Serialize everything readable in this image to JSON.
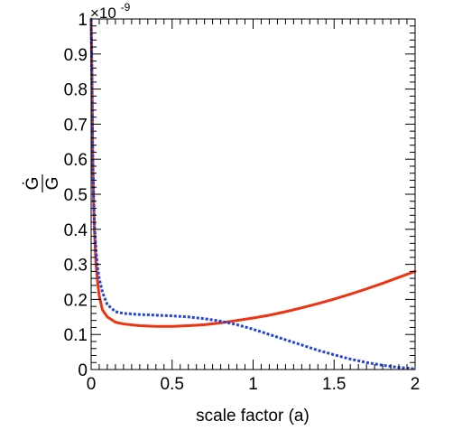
{
  "chart_data": {
    "type": "line",
    "xlabel": "scale factor (a)",
    "ylabel": "Ġ/G",
    "ylabel_numerator": "Ġ",
    "ylabel_denominator": "G",
    "y_multiplier": "×10",
    "y_multiplier_exponent": "-9",
    "xlim": [
      0,
      2
    ],
    "ylim": [
      0,
      1
    ],
    "x_ticks": [
      "0",
      "0.5",
      "1",
      "1.5",
      "2"
    ],
    "y_ticks": [
      "0",
      "0.1",
      "0.2",
      "0.3",
      "0.4",
      "0.5",
      "0.6",
      "0.7",
      "0.8",
      "0.9",
      "1"
    ],
    "grid": false,
    "series": [
      {
        "color": "#ee3311",
        "style": "solid",
        "x": [
          0.0,
          0.005,
          0.01,
          0.015,
          0.02,
          0.03,
          0.04,
          0.05,
          0.07,
          0.1,
          0.15,
          0.2,
          0.3,
          0.4,
          0.5,
          0.6,
          0.7,
          0.8,
          0.9,
          1.0,
          1.1,
          1.2,
          1.3,
          1.4,
          1.5,
          1.6,
          1.7,
          1.8,
          1.9,
          2.0
        ],
        "y": [
          1.0,
          0.85,
          0.6,
          0.48,
          0.4,
          0.3,
          0.25,
          0.21,
          0.17,
          0.15,
          0.135,
          0.13,
          0.125,
          0.123,
          0.123,
          0.125,
          0.128,
          0.133,
          0.14,
          0.147,
          0.155,
          0.165,
          0.176,
          0.188,
          0.201,
          0.215,
          0.23,
          0.246,
          0.263,
          0.28
        ]
      },
      {
        "color": "#2244dd",
        "style": "dotted",
        "x": [
          0.0,
          0.005,
          0.01,
          0.015,
          0.02,
          0.03,
          0.04,
          0.05,
          0.07,
          0.1,
          0.15,
          0.2,
          0.3,
          0.4,
          0.5,
          0.6,
          0.7,
          0.8,
          0.9,
          1.0,
          1.1,
          1.2,
          1.3,
          1.4,
          1.5,
          1.6,
          1.7,
          1.8,
          1.9,
          2.0
        ],
        "y": [
          1.0,
          0.8,
          0.6,
          0.5,
          0.42,
          0.34,
          0.29,
          0.26,
          0.22,
          0.185,
          0.165,
          0.16,
          0.157,
          0.155,
          0.153,
          0.15,
          0.145,
          0.138,
          0.128,
          0.115,
          0.1,
          0.085,
          0.07,
          0.055,
          0.042,
          0.03,
          0.02,
          0.012,
          0.006,
          0.002
        ]
      }
    ]
  }
}
